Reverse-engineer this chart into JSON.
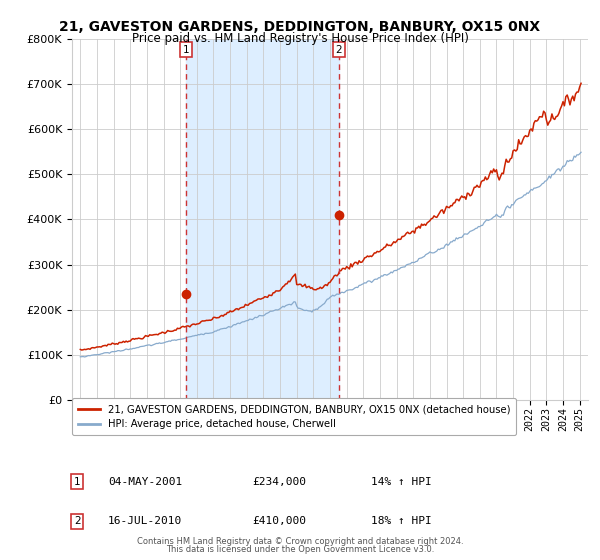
{
  "title": "21, GAVESTON GARDENS, DEDDINGTON, BANBURY, OX15 0NX",
  "subtitle": "Price paid vs. HM Land Registry's House Price Index (HPI)",
  "background_color": "#ffffff",
  "plot_bg_color": "#ffffff",
  "shade_color": "#ddeeff",
  "grid_color": "#cccccc",
  "line1_color": "#cc2200",
  "line2_color": "#88aacc",
  "marker_color": "#cc2200",
  "dashed_color": "#cc3333",
  "ylim": [
    0,
    800000
  ],
  "yticks": [
    0,
    100000,
    200000,
    300000,
    400000,
    500000,
    600000,
    700000,
    800000
  ],
  "ytick_labels": [
    "£0",
    "£100K",
    "£200K",
    "£300K",
    "£400K",
    "£500K",
    "£600K",
    "£700K",
    "£800K"
  ],
  "sale1_year": 2001.35,
  "sale1_price": 234000,
  "sale1_label": "1",
  "sale1_date": "04-MAY-2001",
  "sale1_pct": "14%",
  "sale2_year": 2010.54,
  "sale2_price": 410000,
  "sale2_label": "2",
  "sale2_date": "16-JUL-2010",
  "sale2_pct": "18%",
  "legend1_text": "21, GAVESTON GARDENS, DEDDINGTON, BANBURY, OX15 0NX (detached house)",
  "legend2_text": "HPI: Average price, detached house, Cherwell",
  "footer1": "Contains HM Land Registry data © Crown copyright and database right 2024.",
  "footer2": "This data is licensed under the Open Government Licence v3.0.",
  "xmin": 1994.5,
  "xmax": 2025.5,
  "shade_x1": 2001.35,
  "shade_x2": 2010.54,
  "xtick_start": 1995,
  "xtick_end": 2025
}
